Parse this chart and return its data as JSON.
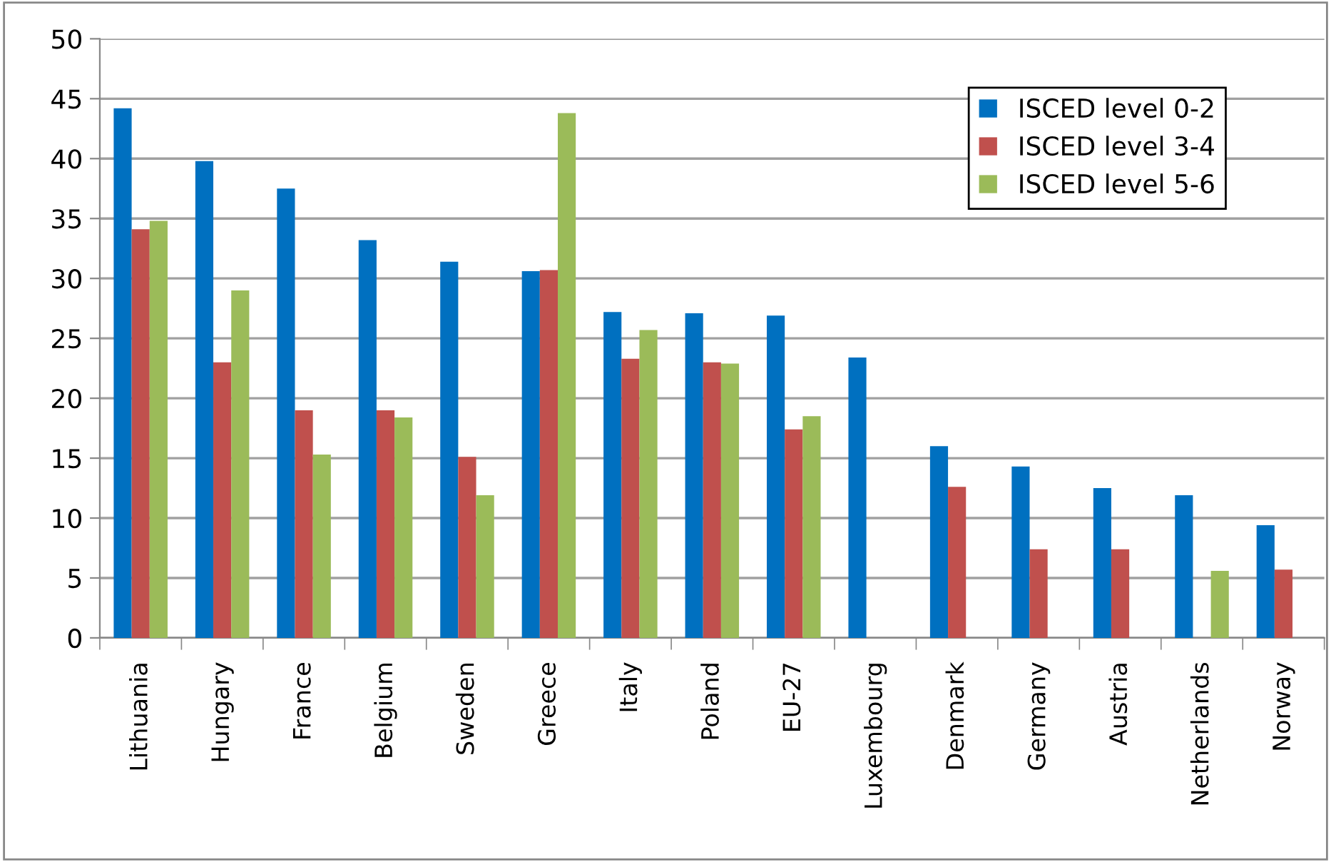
{
  "chart_data": {
    "type": "bar",
    "categories": [
      "Lithuania",
      "Hungary",
      "France",
      "Belgium",
      "Sweden",
      "Greece",
      "Italy",
      "Poland",
      "EU-27",
      "Luxembourg",
      "Denmark",
      "Germany",
      "Austria",
      "Netherlands",
      "Norway"
    ],
    "series": [
      {
        "name": "ISCED level 0-2",
        "color": "#0070c0",
        "values": [
          44.2,
          39.8,
          37.5,
          33.2,
          31.4,
          30.6,
          27.2,
          27.1,
          26.9,
          23.4,
          16.0,
          14.3,
          12.5,
          11.9,
          9.4
        ]
      },
      {
        "name": "ISCED level 3-4",
        "color": "#c0504d",
        "values": [
          34.1,
          23.0,
          19.0,
          19.0,
          15.1,
          30.7,
          23.3,
          23.0,
          17.4,
          null,
          12.6,
          7.4,
          7.4,
          null,
          5.7
        ]
      },
      {
        "name": "ISCED level 5-6",
        "color": "#9bbb59",
        "values": [
          34.8,
          29.0,
          15.3,
          18.4,
          11.9,
          43.8,
          25.7,
          22.9,
          18.5,
          null,
          null,
          null,
          null,
          5.6,
          null
        ]
      }
    ],
    "ylim": [
      0,
      50
    ],
    "yticks": [
      0,
      5,
      10,
      15,
      20,
      25,
      30,
      35,
      40,
      45,
      50
    ],
    "grid": "y",
    "legend": "top right"
  }
}
